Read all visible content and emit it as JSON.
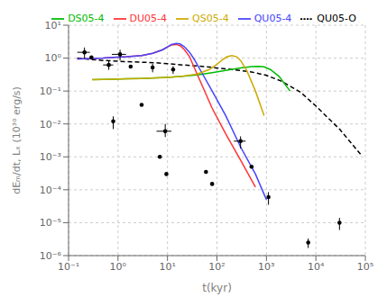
{
  "chart_data": {
    "type": "line",
    "xlabel": "t(kyr)",
    "ylabel": "dEₘ/dt, Lₓ (10³⁰ erg/s)",
    "log": true,
    "xlim": [
      0.1,
      100000
    ],
    "ylim": [
      1e-06,
      10
    ],
    "xticks": [
      {
        "value": 0.1,
        "label": "10⁻¹"
      },
      {
        "value": 1,
        "label": "10⁰"
      },
      {
        "value": 10,
        "label": "10¹"
      },
      {
        "value": 100,
        "label": "10²"
      },
      {
        "value": 1000,
        "label": "10³"
      },
      {
        "value": 10000,
        "label": "10⁴"
      },
      {
        "value": 100000,
        "label": "10⁵"
      }
    ],
    "yticks": [
      {
        "value": 1e-06,
        "label": "10⁻⁶"
      },
      {
        "value": 1e-05,
        "label": "10⁻⁵"
      },
      {
        "value": 0.0001,
        "label": "10⁻⁴"
      },
      {
        "value": 0.001,
        "label": "10⁻³"
      },
      {
        "value": 0.01,
        "label": "10⁻²"
      },
      {
        "value": 0.1,
        "label": "10⁻¹"
      },
      {
        "value": 1,
        "label": "10⁰"
      },
      {
        "value": 10,
        "label": "10¹"
      }
    ],
    "grid": true,
    "legend": "upper right",
    "series": [
      {
        "name": "QU05-O",
        "type": "line",
        "color": "black",
        "line_style": "dashed",
        "x": [
          0.15,
          0.3,
          0.5,
          0.8,
          1.5,
          3.0,
          6.0,
          10.0,
          20.0,
          40.0,
          80.0,
          200.0,
          500.0,
          1000.0,
          2000.0,
          5000.0,
          10000.0,
          30000.0,
          80000.0
        ],
        "values": [
          1.0,
          0.9,
          0.85,
          0.82,
          0.78,
          0.75,
          0.72,
          0.68,
          0.62,
          0.58,
          0.52,
          0.45,
          0.38,
          0.3,
          0.2,
          0.09,
          0.035,
          0.007,
          0.0012
        ]
      },
      {
        "name": "DS05-4",
        "type": "line",
        "color": "#00bb00",
        "line_style": "solid",
        "x": [
          0.3,
          0.5,
          0.8,
          1.5,
          3.0,
          6.0,
          10.0,
          20.0,
          40.0,
          80.0,
          150.0,
          300.0,
          500.0,
          700.0,
          900.0,
          1200.0,
          1800.0,
          3000.0
        ],
        "values": [
          0.22,
          0.225,
          0.23,
          0.235,
          0.24,
          0.25,
          0.26,
          0.28,
          0.31,
          0.36,
          0.42,
          0.5,
          0.55,
          0.56,
          0.54,
          0.45,
          0.28,
          0.1
        ]
      },
      {
        "name": "DU05-4",
        "type": "line",
        "color": "#ff3333",
        "line_style": "solid",
        "x": [
          0.15,
          0.3,
          0.5,
          0.8,
          1.5,
          3.0,
          5.0,
          8.0,
          10.0,
          12.0,
          15.0,
          18.0,
          22.0,
          28.0,
          35.0,
          50.0,
          80.0,
          150.0,
          300.0,
          600.0
        ],
        "values": [
          0.95,
          0.98,
          1.0,
          1.05,
          1.1,
          1.2,
          1.4,
          1.8,
          2.2,
          2.5,
          2.6,
          2.4,
          1.8,
          1.1,
          0.5,
          0.15,
          0.03,
          0.005,
          0.0008,
          0.00012
        ]
      },
      {
        "name": "QU05-4",
        "type": "line",
        "color": "#4444ff",
        "line_style": "solid",
        "x": [
          0.15,
          0.3,
          0.5,
          0.8,
          1.5,
          3.0,
          5.0,
          8.0,
          10.0,
          12.0,
          15.0,
          18.0,
          22.0,
          28.0,
          35.0,
          50.0,
          80.0,
          150.0,
          300.0,
          600.0,
          1000.0
        ],
        "values": [
          0.95,
          0.98,
          1.0,
          1.05,
          1.1,
          1.2,
          1.4,
          1.8,
          2.2,
          2.6,
          2.8,
          2.7,
          2.2,
          1.5,
          0.9,
          0.35,
          0.1,
          0.018,
          0.002,
          0.0003,
          5e-05
        ]
      },
      {
        "name": "QS05-4",
        "type": "line",
        "color": "#ccaa00",
        "line_style": "solid",
        "x": [
          0.3,
          0.5,
          0.8,
          1.5,
          3.0,
          6.0,
          10.0,
          20.0,
          40.0,
          70.0,
          100.0,
          130.0,
          160.0,
          200.0,
          250.0,
          300.0,
          400.0,
          600.0,
          900.0
        ],
        "values": [
          0.22,
          0.225,
          0.23,
          0.235,
          0.24,
          0.25,
          0.26,
          0.28,
          0.33,
          0.45,
          0.65,
          0.9,
          1.1,
          1.2,
          1.1,
          0.85,
          0.42,
          0.1,
          0.018
        ]
      },
      {
        "type": "scatter",
        "color": "black",
        "marker": "dot",
        "x": [
          0.21,
          0.29,
          0.65,
          0.8,
          1.1,
          1.8,
          3.0,
          5.0,
          7.0,
          9.0,
          9.5,
          13.0,
          60.0,
          80.0,
          300.0,
          500.0,
          1100.0,
          7000.0,
          30000.0
        ],
        "values": [
          1.5,
          1.05,
          0.62,
          0.012,
          1.3,
          0.55,
          0.038,
          0.52,
          0.001,
          0.006,
          0.0003,
          0.45,
          0.00035,
          0.00015,
          0.003,
          0.0005,
          6e-05,
          2.5e-06,
          1e-05
        ],
        "xerr_lo": [
          0.06,
          0,
          0.15,
          0,
          0.35,
          0,
          0,
          0,
          0,
          3.0,
          0,
          0,
          0,
          0,
          80,
          0,
          0,
          0,
          0
        ],
        "xerr_hi": [
          0.06,
          0,
          0.15,
          0,
          0.35,
          0,
          0,
          0,
          0,
          3.0,
          0,
          0,
          0,
          0,
          80,
          0,
          0,
          0,
          0
        ],
        "yerr_lo": [
          0.55,
          0,
          0.18,
          0.005,
          0.45,
          0,
          0,
          0.15,
          0,
          0.002,
          0,
          0.12,
          0,
          0,
          0.0012,
          0,
          2.5e-05,
          8e-07,
          4e-06
        ],
        "yerr_hi": [
          0.6,
          0,
          0.2,
          0.005,
          0.5,
          0,
          0,
          0.15,
          0,
          0.004,
          0,
          0.12,
          0,
          0,
          0.0012,
          0,
          2.5e-05,
          8e-07,
          4e-06
        ]
      }
    ]
  }
}
